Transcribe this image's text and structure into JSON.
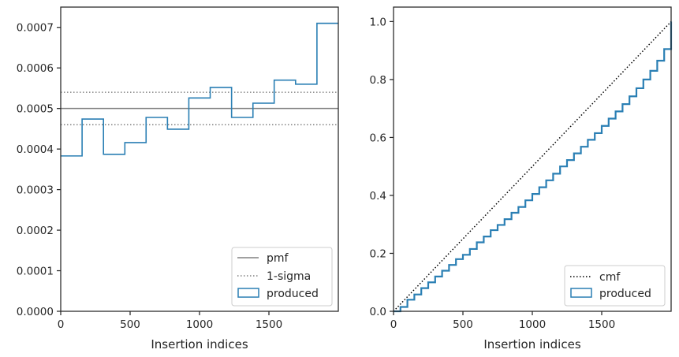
{
  "chart_data": [
    {
      "type": "line",
      "xlabel": "Insertion indices",
      "ylabel": "",
      "xlim": [
        0,
        2000
      ],
      "ylim": [
        0,
        0.00075
      ],
      "xticks": [
        0,
        500,
        1000,
        1500
      ],
      "xtick_labels": [
        "0",
        "500",
        "1000",
        "1500"
      ],
      "yticks": [
        0,
        0.0001,
        0.0002,
        0.0003,
        0.0004,
        0.0005,
        0.0006,
        0.0007
      ],
      "ytick_labels": [
        "0.0000",
        "0.0001",
        "0.0002",
        "0.0003",
        "0.0004",
        "0.0005",
        "0.0006",
        "0.0007"
      ],
      "grid": false,
      "legend_position": "lower-right",
      "legend": [
        "pmf",
        "1-sigma",
        "produced"
      ],
      "series": [
        {
          "name": "pmf",
          "style": "solid",
          "color": "#808080",
          "x": [
            0,
            2000
          ],
          "y": [
            0.0005,
            0.0005
          ]
        },
        {
          "name": "1-sigma",
          "style": "dotted",
          "color": "#808080",
          "x": [
            0,
            2000
          ],
          "y": [
            0.00054,
            0.00054
          ]
        },
        {
          "name": "1-sigma",
          "style": "dotted",
          "color": "#808080",
          "x": [
            0,
            2000
          ],
          "y": [
            0.00046,
            0.00046
          ]
        },
        {
          "name": "produced",
          "style": "step-histogram",
          "color": "#2a7fb4",
          "bin_edges": [
            0,
            154,
            308,
            462,
            615,
            769,
            923,
            1077,
            1231,
            1385,
            1538,
            1692,
            1846,
            2000
          ],
          "values": [
            0.000383,
            0.000474,
            0.000387,
            0.000416,
            0.000478,
            0.000449,
            0.000526,
            0.000552,
            0.000478,
            0.000513,
            0.00057,
            0.00056,
            0.00071
          ]
        }
      ]
    },
    {
      "type": "line",
      "xlabel": "Insertion indices",
      "ylabel": "",
      "xlim": [
        0,
        2000
      ],
      "ylim": [
        0,
        1.05
      ],
      "xticks": [
        0,
        500,
        1000,
        1500
      ],
      "xtick_labels": [
        "0",
        "500",
        "1000",
        "1500"
      ],
      "yticks": [
        0,
        0.2,
        0.4,
        0.6,
        0.8,
        1.0
      ],
      "ytick_labels": [
        "0.0",
        "0.2",
        "0.4",
        "0.6",
        "0.8",
        "1.0"
      ],
      "grid": false,
      "legend_position": "lower-right",
      "legend": [
        "cmf",
        "produced"
      ],
      "series": [
        {
          "name": "cmf",
          "style": "dotted",
          "color": "#000000",
          "x": [
            0,
            2000
          ],
          "y": [
            0,
            1.0
          ]
        },
        {
          "name": "produced",
          "style": "step",
          "color": "#2a7fb4",
          "x": [
            0,
            50,
            100,
            150,
            200,
            250,
            300,
            350,
            400,
            450,
            500,
            550,
            600,
            650,
            700,
            750,
            800,
            850,
            900,
            950,
            1000,
            1050,
            1100,
            1150,
            1200,
            1250,
            1300,
            1350,
            1400,
            1450,
            1500,
            1550,
            1600,
            1650,
            1700,
            1750,
            1800,
            1850,
            1900,
            1950,
            2000
          ],
          "y": [
            0,
            0.015,
            0.04,
            0.058,
            0.08,
            0.1,
            0.12,
            0.14,
            0.16,
            0.18,
            0.195,
            0.215,
            0.238,
            0.258,
            0.28,
            0.298,
            0.318,
            0.34,
            0.36,
            0.383,
            0.405,
            0.428,
            0.452,
            0.475,
            0.5,
            0.522,
            0.545,
            0.568,
            0.592,
            0.615,
            0.64,
            0.665,
            0.69,
            0.715,
            0.742,
            0.77,
            0.8,
            0.83,
            0.865,
            0.905,
            1.0
          ]
        }
      ]
    }
  ]
}
